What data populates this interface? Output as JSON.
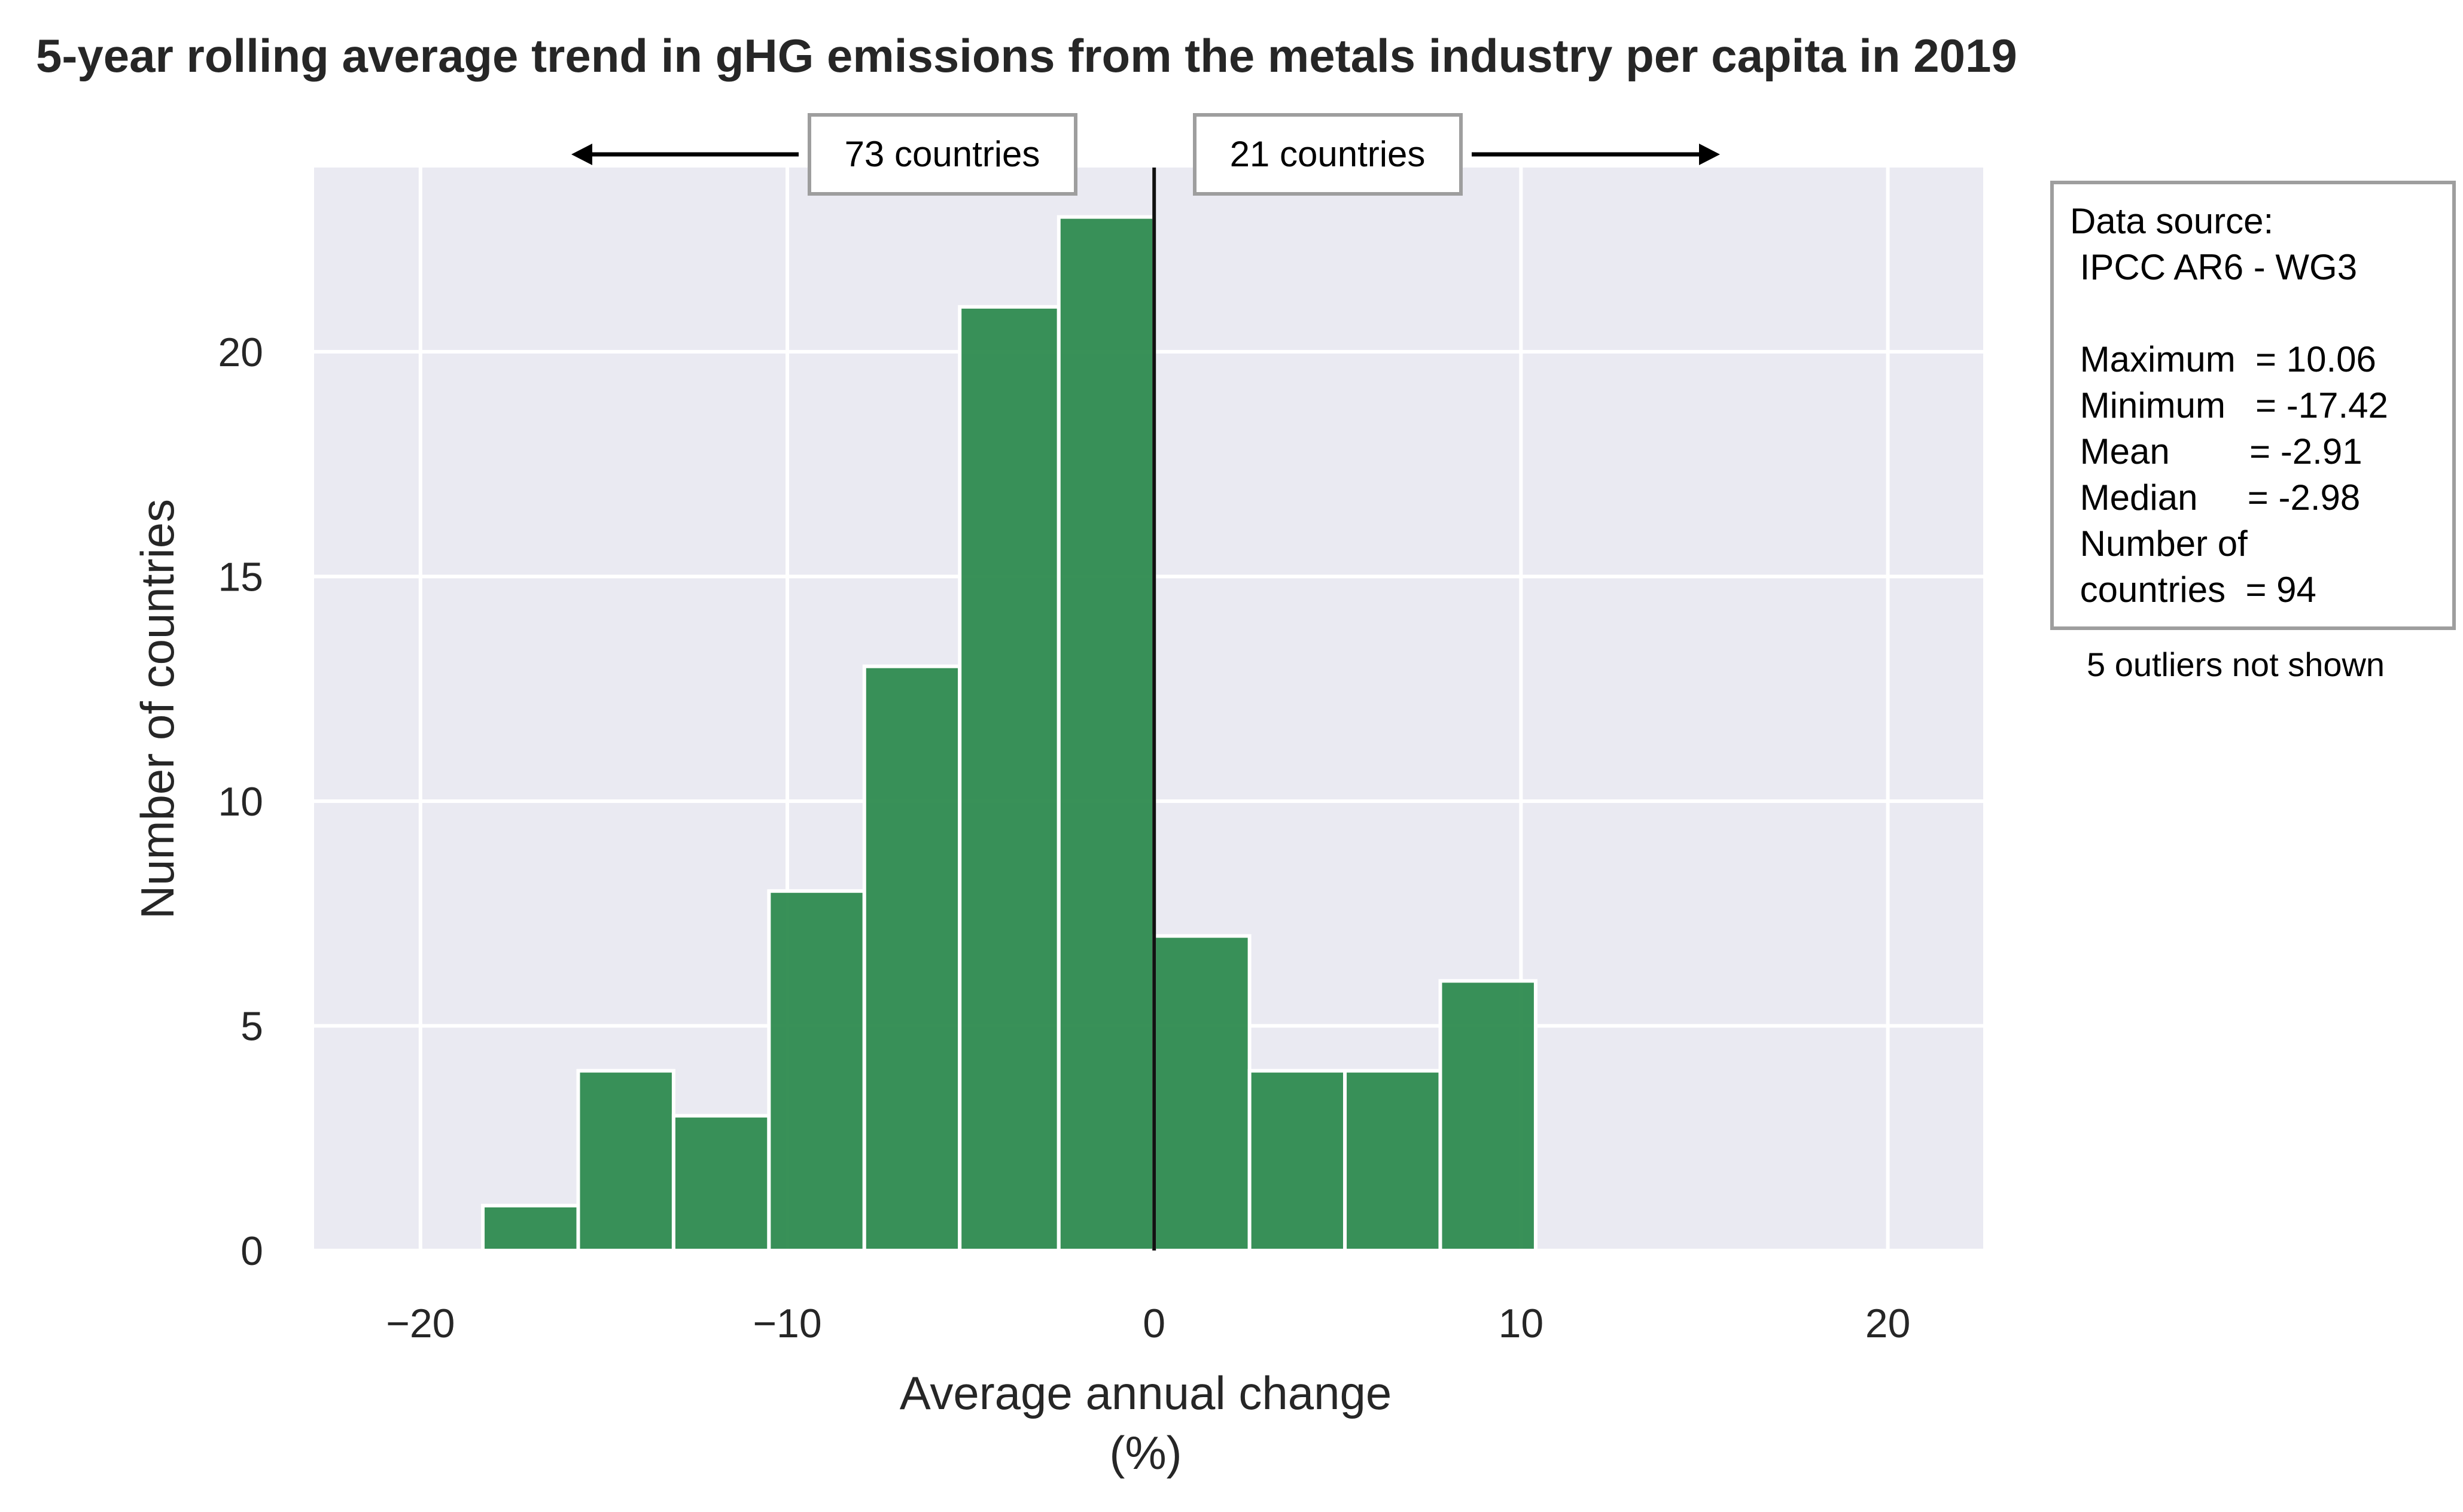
{
  "chart_data": {
    "type": "bar",
    "title": "5-year rolling average trend in gHG emissions from the metals industry per capita in 2019",
    "xlabel_line1": "Average annual change",
    "xlabel_line2": "(%)",
    "ylabel": "Number of countries",
    "xlim": [
      -22.9,
      22.6
    ],
    "ylim": [
      0,
      24.1
    ],
    "x_ticks": [
      -20,
      -10,
      0,
      10,
      20
    ],
    "x_tick_labels": [
      "−20",
      "−10",
      "0",
      "10",
      "20"
    ],
    "y_ticks": [
      0,
      5,
      10,
      15,
      20
    ],
    "y_tick_labels": [
      "0",
      "5",
      "10",
      "15",
      "20"
    ],
    "grid": true,
    "bar_color": "#2e8b4f",
    "background_color": "#eaeaf2",
    "bins": [
      {
        "start": -18.3,
        "end": -15.7,
        "count": 1
      },
      {
        "start": -15.7,
        "end": -13.1,
        "count": 4
      },
      {
        "start": -13.1,
        "end": -10.5,
        "count": 3
      },
      {
        "start": -10.5,
        "end": -7.9,
        "count": 8
      },
      {
        "start": -7.9,
        "end": -5.3,
        "count": 13
      },
      {
        "start": -5.3,
        "end": -2.6,
        "count": 21
      },
      {
        "start": -2.6,
        "end": 0.0,
        "count": 23
      },
      {
        "start": 0.0,
        "end": 2.6,
        "count": 7
      },
      {
        "start": 2.6,
        "end": 5.2,
        "count": 4
      },
      {
        "start": 5.2,
        "end": 7.8,
        "count": 4
      },
      {
        "start": 7.8,
        "end": 10.4,
        "count": 6
      }
    ],
    "zero_line_x": 0,
    "annotations": {
      "left_count": "73 countries",
      "right_count": "21 countries"
    },
    "stats_box": {
      "lines": [
        "Data source:",
        " IPCC AR6 - WG3",
        "",
        " Maximum  = 10.06",
        " Minimum   = -17.42",
        " Mean        = -2.91",
        " Median     = -2.98",
        " Number of",
        " countries  = 94"
      ]
    },
    "outliers_note": "5 outliers not shown"
  }
}
